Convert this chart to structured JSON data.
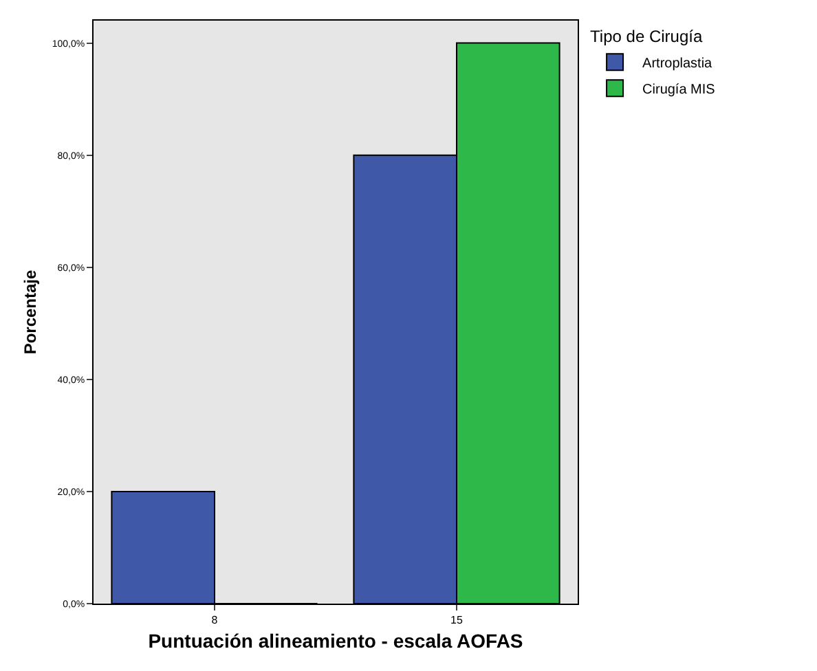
{
  "chart_data": {
    "type": "bar",
    "xlabel": "Puntuación alineamiento - escala AOFAS",
    "ylabel": "Porcentaje",
    "legend_title": "Tipo de Cirugía",
    "categories": [
      "8",
      "15"
    ],
    "series": [
      {
        "name": "Artroplastia",
        "color": "#3f58a8",
        "values": [
          20,
          80
        ]
      },
      {
        "name": "Cirugía MIS",
        "color": "#2eb84a",
        "values": [
          0,
          100
        ]
      }
    ],
    "ylim": [
      0,
      104
    ],
    "yticks": [
      {
        "value": 0,
        "label": "0,0%"
      },
      {
        "value": 20,
        "label": "20,0%"
      },
      {
        "value": 40,
        "label": "40,0%"
      },
      {
        "value": 60,
        "label": "60,0%"
      },
      {
        "value": 80,
        "label": "80,0%"
      },
      {
        "value": 100,
        "label": "100,0%"
      }
    ],
    "grid": false,
    "legend": "top right"
  }
}
